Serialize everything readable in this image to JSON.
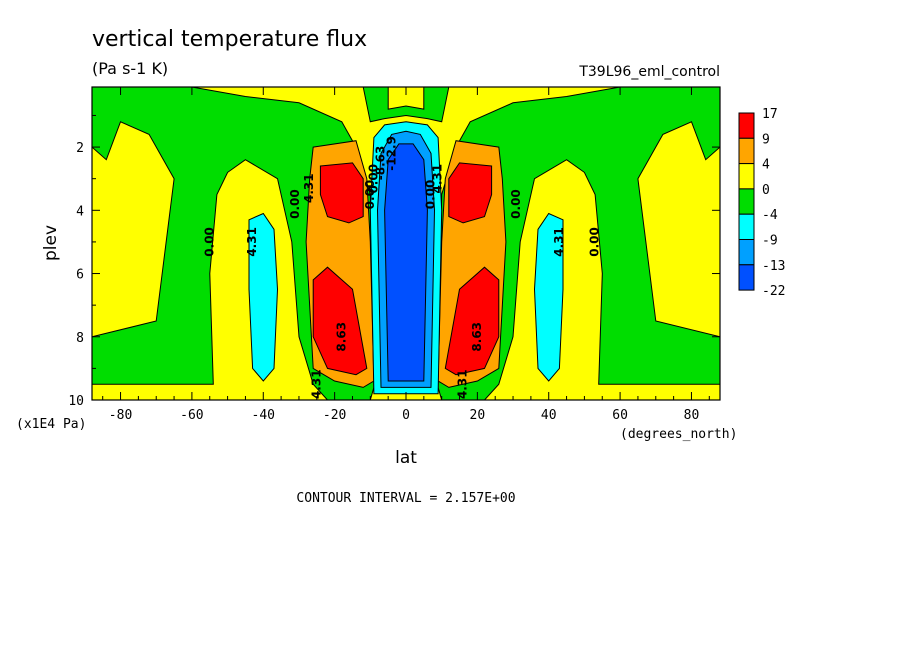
{
  "chart_data": {
    "type": "heatmap",
    "title": "vertical temperature flux",
    "subtitle": "(Pa s-1 K)",
    "dataset_label": "T39L96_eml_control",
    "xlabel": "lat",
    "x_units": "(degrees_north)",
    "ylabel": "plev",
    "y_units": "(x1E4 Pa)",
    "xlim": [
      -88,
      88
    ],
    "ylim": [
      10,
      0.1
    ],
    "y_inverted": true,
    "x_ticks": [
      "-80",
      "-60",
      "-40",
      "-20",
      "0",
      "20",
      "40",
      "60",
      "80"
    ],
    "x_tick_values": [
      -80,
      -60,
      -40,
      -20,
      0,
      20,
      40,
      60,
      80
    ],
    "y_ticks": [
      "2",
      "4",
      "6",
      "8",
      "10"
    ],
    "y_tick_values": [
      2,
      4,
      6,
      8,
      10
    ],
    "colorbar": {
      "labels": [
        "17",
        "9",
        "4",
        "0",
        "-4",
        "-9",
        "-13",
        "-22"
      ],
      "colors": [
        "#ff0000",
        "#ffa500",
        "#ffff00",
        "#00dd00",
        "#00ffff",
        "#00a0ff",
        "#0050ff"
      ]
    },
    "background_color": "#ffff00",
    "regions": [
      {
        "name": "green-west",
        "color": "#00dd00",
        "points": [
          [
            -88,
            0.1
          ],
          [
            -60,
            0.1
          ],
          [
            -45,
            0.4
          ],
          [
            -30,
            0.6
          ],
          [
            -18,
            1.2
          ],
          [
            -14,
            2.0
          ],
          [
            -10,
            3.5
          ],
          [
            -9,
            9.6
          ],
          [
            -10,
            10
          ],
          [
            -22,
            10
          ],
          [
            -26,
            9.5
          ],
          [
            -30,
            8.0
          ],
          [
            -32,
            5.0
          ],
          [
            -36,
            3.0
          ],
          [
            -45,
            2.4
          ],
          [
            -50,
            2.8
          ],
          [
            -53,
            3.5
          ],
          [
            -55,
            6.0
          ],
          [
            -54,
            9.5
          ],
          [
            -88,
            9.5
          ],
          [
            -88,
            8.0
          ],
          [
            -70,
            7.5
          ],
          [
            -65,
            3.0
          ],
          [
            -72,
            1.6
          ],
          [
            -80,
            1.2
          ],
          [
            -84,
            2.4
          ],
          [
            -88,
            2.0
          ]
        ]
      },
      {
        "name": "green-east",
        "color": "#00dd00",
        "points": [
          [
            88,
            0.1
          ],
          [
            60,
            0.1
          ],
          [
            45,
            0.4
          ],
          [
            30,
            0.6
          ],
          [
            18,
            1.2
          ],
          [
            14,
            2.0
          ],
          [
            10,
            3.5
          ],
          [
            9,
            9.6
          ],
          [
            10,
            10
          ],
          [
            22,
            10
          ],
          [
            26,
            9.5
          ],
          [
            30,
            8.0
          ],
          [
            32,
            5.0
          ],
          [
            36,
            3.0
          ],
          [
            45,
            2.4
          ],
          [
            50,
            2.8
          ],
          [
            53,
            3.5
          ],
          [
            55,
            6.0
          ],
          [
            54,
            9.5
          ],
          [
            88,
            9.5
          ],
          [
            88,
            8.0
          ],
          [
            70,
            7.5
          ],
          [
            65,
            3.0
          ],
          [
            72,
            1.6
          ],
          [
            80,
            1.2
          ],
          [
            84,
            2.4
          ],
          [
            88,
            2.0
          ]
        ]
      },
      {
        "name": "green-center",
        "color": "#00dd00",
        "points": [
          [
            -12,
            0.1
          ],
          [
            12,
            0.1
          ],
          [
            10,
            1.2
          ],
          [
            6,
            1.1
          ],
          [
            0,
            1.0
          ],
          [
            -6,
            1.1
          ],
          [
            -10,
            1.2
          ]
        ]
      },
      {
        "name": "yellow-cap",
        "color": "#ffff00",
        "points": [
          [
            -5,
            0.1
          ],
          [
            5,
            0.1
          ],
          [
            5,
            0.8
          ],
          [
            0,
            0.7
          ],
          [
            -5,
            0.8
          ]
        ]
      },
      {
        "name": "cyan-west",
        "color": "#00ffff",
        "points": [
          [
            -44,
            4.3
          ],
          [
            -40,
            4.1
          ],
          [
            -37,
            4.6
          ],
          [
            -36,
            6.5
          ],
          [
            -37,
            9.0
          ],
          [
            -40,
            9.4
          ],
          [
            -43,
            9.0
          ],
          [
            -44,
            6.5
          ]
        ]
      },
      {
        "name": "cyan-east",
        "color": "#00ffff",
        "points": [
          [
            44,
            4.3
          ],
          [
            40,
            4.1
          ],
          [
            37,
            4.6
          ],
          [
            36,
            6.5
          ],
          [
            37,
            9.0
          ],
          [
            40,
            9.4
          ],
          [
            43,
            9.0
          ],
          [
            44,
            6.5
          ]
        ]
      },
      {
        "name": "orange-west",
        "color": "#ffa500",
        "points": [
          [
            -26,
            2.0
          ],
          [
            -14,
            1.8
          ],
          [
            -11,
            3.0
          ],
          [
            -10,
            5.0
          ],
          [
            -9,
            9.4
          ],
          [
            -12,
            9.6
          ],
          [
            -20,
            9.4
          ],
          [
            -26,
            9.0
          ],
          [
            -28,
            5.0
          ],
          [
            -27,
            3.0
          ]
        ]
      },
      {
        "name": "orange-east",
        "color": "#ffa500",
        "points": [
          [
            26,
            2.0
          ],
          [
            14,
            1.8
          ],
          [
            11,
            3.0
          ],
          [
            10,
            5.0
          ],
          [
            9,
            9.4
          ],
          [
            12,
            9.6
          ],
          [
            20,
            9.4
          ],
          [
            26,
            9.0
          ],
          [
            28,
            5.0
          ],
          [
            27,
            3.0
          ]
        ]
      },
      {
        "name": "red-west-upper",
        "color": "#ff0000",
        "points": [
          [
            -24,
            2.6
          ],
          [
            -15,
            2.5
          ],
          [
            -12,
            3.0
          ],
          [
            -12,
            4.2
          ],
          [
            -16,
            4.4
          ],
          [
            -22,
            4.2
          ],
          [
            -24,
            3.5
          ]
        ]
      },
      {
        "name": "red-east-upper",
        "color": "#ff0000",
        "points": [
          [
            24,
            2.6
          ],
          [
            15,
            2.5
          ],
          [
            12,
            3.0
          ],
          [
            12,
            4.2
          ],
          [
            16,
            4.4
          ],
          [
            22,
            4.2
          ],
          [
            24,
            3.5
          ]
        ]
      },
      {
        "name": "red-west-lower",
        "color": "#ff0000",
        "points": [
          [
            -26,
            6.2
          ],
          [
            -22,
            5.8
          ],
          [
            -15,
            6.5
          ],
          [
            -11,
            9.0
          ],
          [
            -14,
            9.2
          ],
          [
            -22,
            9.0
          ],
          [
            -26,
            8.0
          ]
        ]
      },
      {
        "name": "red-east-lower",
        "color": "#ff0000",
        "points": [
          [
            26,
            6.2
          ],
          [
            22,
            5.8
          ],
          [
            15,
            6.5
          ],
          [
            11,
            9.0
          ],
          [
            14,
            9.2
          ],
          [
            22,
            9.0
          ],
          [
            26,
            8.0
          ]
        ]
      },
      {
        "name": "cyan-center",
        "color": "#00ffff",
        "points": [
          [
            -9,
            1.7
          ],
          [
            -6,
            1.3
          ],
          [
            0,
            1.2
          ],
          [
            6,
            1.3
          ],
          [
            9,
            1.7
          ],
          [
            10,
            4.0
          ],
          [
            9,
            9.8
          ],
          [
            -9,
            9.8
          ],
          [
            -10,
            4.0
          ]
        ]
      },
      {
        "name": "blue-center",
        "color": "#00a0ff",
        "points": [
          [
            -7,
            2.2
          ],
          [
            -4,
            1.6
          ],
          [
            0,
            1.5
          ],
          [
            4,
            1.6
          ],
          [
            7,
            2.2
          ],
          [
            8,
            4.0
          ],
          [
            7,
            9.6
          ],
          [
            -7,
            9.6
          ],
          [
            -8,
            4.0
          ]
        ]
      },
      {
        "name": "deepblue-center",
        "color": "#0050ff",
        "points": [
          [
            -5,
            2.4
          ],
          [
            -2,
            1.9
          ],
          [
            2,
            1.9
          ],
          [
            5,
            2.4
          ],
          [
            6,
            4.0
          ],
          [
            5,
            9.4
          ],
          [
            -5,
            9.4
          ],
          [
            -6,
            4.0
          ]
        ]
      }
    ],
    "contour_labels": [
      {
        "text": "0.00",
        "lat": -54,
        "plev": 5.0
      },
      {
        "text": "4.31",
        "lat": -42,
        "plev": 5.0
      },
      {
        "text": "0.00",
        "lat": -30,
        "plev": 3.8
      },
      {
        "text": "4.31",
        "lat": -26,
        "plev": 3.3
      },
      {
        "text": "0.00",
        "lat": -9,
        "plev": 3.5
      },
      {
        "text": "0.00",
        "lat": -8,
        "plev": 3.0
      },
      {
        "text": "8.63",
        "lat": -17,
        "plev": 8.0
      },
      {
        "text": "4.31",
        "lat": -24,
        "plev": 9.5
      },
      {
        "text": "-8.63",
        "lat": -6,
        "plev": 2.5
      },
      {
        "text": "-12.9",
        "lat": -3,
        "plev": 2.2
      },
      {
        "text": "0.00",
        "lat": 8,
        "plev": 3.5
      },
      {
        "text": "4.31",
        "lat": 10,
        "plev": 3.0
      },
      {
        "text": "8.63",
        "lat": 21,
        "plev": 8.0
      },
      {
        "text": "4.31",
        "lat": 17,
        "plev": 9.5
      },
      {
        "text": "0.00",
        "lat": 32,
        "plev": 3.8
      },
      {
        "text": "4.31",
        "lat": 44,
        "plev": 5.0
      },
      {
        "text": "0.00",
        "lat": 54,
        "plev": 5.0
      }
    ],
    "footer": "CONTOUR INTERVAL = 2.157E+00"
  }
}
